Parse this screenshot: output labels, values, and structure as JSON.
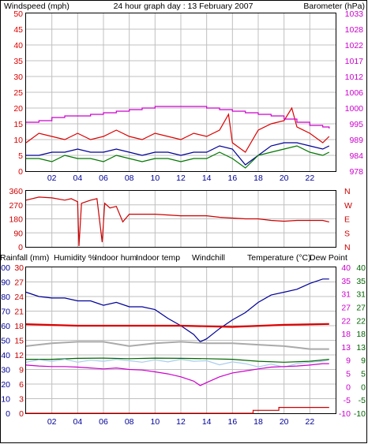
{
  "colors": {
    "windspeed": "#dd0000",
    "barometer": "#cc00cc",
    "windavg": "#000099",
    "gust": "#007700",
    "direction": "#cc0000",
    "rainfall": "#cc0000",
    "humidity": "#000099",
    "indoor_hum": "#aaaaaa",
    "indoor_temp": "#dd0000",
    "windchill": "#aaccee",
    "temperature": "#006600",
    "dew_point": "#cc00cc",
    "frame": "#000000",
    "grid": "#c0c0c0"
  },
  "chart_data": [
    {
      "type": "line",
      "title": "24 hour graph day : 13 February 2007",
      "xticks": [
        "02",
        "04",
        "06",
        "08",
        "10",
        "12",
        "14",
        "16",
        "18",
        "20",
        "22"
      ],
      "xrange": [
        0,
        24
      ],
      "ylabel_left": "Windspeed (mph)",
      "ylabel_right": "Barometer (hPa)",
      "ylim_left": [
        0,
        50
      ],
      "yticks_left": [
        "0",
        "5",
        "10",
        "15",
        "20",
        "25",
        "30",
        "35",
        "40",
        "45",
        "50"
      ],
      "yticks_right": [
        "978",
        "984",
        "989",
        "995",
        "1000",
        "1006",
        "1012",
        "1017",
        "1022",
        "1028",
        "1033"
      ],
      "series": [
        {
          "key": "windspeed",
          "axis": "left",
          "x": [
            0,
            1,
            2,
            3,
            4,
            5,
            6,
            7,
            8,
            9,
            10,
            11,
            12,
            13,
            14,
            15,
            15.7,
            16,
            17,
            18,
            19,
            20,
            20.6,
            21,
            22,
            23,
            23.5
          ],
          "y": [
            9,
            12,
            11,
            10,
            12,
            10,
            11,
            13,
            11,
            10,
            12,
            11,
            10,
            12,
            11,
            13,
            18,
            9,
            6,
            13,
            15,
            16,
            20,
            14,
            12,
            9,
            11
          ]
        },
        {
          "key": "windavg",
          "axis": "left",
          "x": [
            0,
            1,
            2,
            3,
            4,
            5,
            6,
            7,
            8,
            9,
            10,
            11,
            12,
            13,
            14,
            15,
            16,
            17,
            18,
            19,
            20,
            21,
            22,
            23,
            23.5
          ],
          "y": [
            5,
            5,
            6,
            6,
            7,
            6,
            6,
            7,
            6,
            5,
            6,
            6,
            5,
            6,
            6,
            8,
            7,
            2,
            5,
            8,
            9,
            9,
            8,
            7,
            8
          ]
        },
        {
          "key": "gust",
          "axis": "left",
          "x": [
            0,
            1,
            2,
            3,
            4,
            5,
            6,
            7,
            8,
            9,
            10,
            11,
            12,
            13,
            14,
            15,
            16,
            17,
            18,
            19,
            20,
            21,
            22,
            23,
            23.5
          ],
          "y": [
            4,
            4,
            3,
            5,
            4,
            4,
            3,
            5,
            4,
            3,
            4,
            4,
            3,
            4,
            4,
            6,
            4,
            1,
            5,
            6,
            7,
            8,
            6,
            5,
            6
          ]
        },
        {
          "key": "barometer",
          "axis": "left",
          "x": [
            0,
            1,
            2,
            3,
            4,
            5,
            6,
            7,
            8,
            9,
            10,
            11,
            12,
            13,
            14,
            15,
            16,
            17,
            18,
            19,
            20,
            21,
            22,
            23,
            23.5
          ],
          "y": [
            15.5,
            16,
            17,
            17.5,
            17.5,
            18,
            18.5,
            19,
            19.5,
            20,
            20.5,
            20.5,
            20.5,
            20.5,
            20,
            19.5,
            19,
            18.5,
            18,
            17.5,
            16.5,
            15.5,
            14.5,
            14,
            13.5
          ]
        }
      ]
    },
    {
      "type": "line",
      "ylabel_left": "",
      "ylim_left": [
        0,
        360
      ],
      "yticks_left": [
        "0",
        "90",
        "180",
        "270",
        "360"
      ],
      "yticks_right": [
        "N",
        "S",
        "E",
        "W",
        "N"
      ],
      "xrange": [
        0,
        24
      ],
      "series": [
        {
          "key": "direction",
          "axis": "left",
          "x": [
            0,
            1,
            2,
            3,
            3.5,
            4,
            4.1,
            4.3,
            5,
            5.5,
            5.9,
            6.1,
            6.5,
            7,
            7.5,
            8,
            9,
            10,
            11,
            12,
            13,
            14,
            15,
            16,
            17,
            18,
            19,
            20,
            21,
            22,
            23,
            23.5
          ],
          "y": [
            300,
            320,
            315,
            300,
            310,
            290,
            5,
            280,
            300,
            310,
            30,
            280,
            250,
            260,
            160,
            210,
            210,
            210,
            205,
            200,
            200,
            200,
            190,
            185,
            180,
            180,
            170,
            165,
            170,
            170,
            170,
            160
          ]
        }
      ]
    },
    {
      "type": "line",
      "xticks": [
        "02",
        "04",
        "06",
        "08",
        "10",
        "12",
        "14",
        "16",
        "18",
        "20",
        "22"
      ],
      "xrange": [
        0,
        24
      ],
      "legend": {
        "rainfall": "Rainfall (mm)",
        "humidity": "Humidity %",
        "indoor_hum": "Indoor hum",
        "indoor_temp": "Indoor temp",
        "windchill": "Windchill",
        "temperature": "Temperature (°C)",
        "dew_point": "Dew Point"
      },
      "ylim_left": [
        0,
        100
      ],
      "ylim_right": [
        -10,
        40
      ],
      "yticks_left_rain": [
        "0",
        "3",
        "6",
        "9",
        "12",
        "15",
        "18",
        "21",
        "24",
        "27",
        "30"
      ],
      "yticks_left_hum": [
        "0",
        "10",
        "20",
        "30",
        "40",
        "50",
        "60",
        "70",
        "80",
        "90",
        "100"
      ],
      "yticks_right": [
        "-10",
        "-5",
        "0",
        "5",
        "9",
        "13",
        "18",
        "22",
        "27",
        "31",
        "35",
        "40"
      ],
      "series": [
        {
          "key": "humidity",
          "axis": "left",
          "x": [
            0,
            1,
            2,
            3,
            4,
            5,
            6,
            7,
            8,
            9,
            10,
            11,
            12,
            13,
            13.5,
            14,
            15,
            16,
            17,
            18,
            19,
            20,
            21,
            22,
            23,
            23.5
          ],
          "y": [
            83,
            80,
            79,
            79,
            77,
            77,
            74,
            76,
            73,
            73,
            71,
            65,
            60,
            54,
            49,
            51,
            58,
            64,
            69,
            76,
            81,
            83,
            85,
            89,
            92,
            92
          ]
        },
        {
          "key": "indoor_hum",
          "axis": "left",
          "x": [
            0,
            2,
            4,
            6,
            8,
            10,
            12,
            14,
            16,
            18,
            20,
            22,
            23.5
          ],
          "y": [
            46,
            48,
            49,
            49,
            46,
            48,
            49,
            48,
            48,
            47,
            46,
            44,
            44
          ]
        },
        {
          "key": "indoor_temp",
          "axis": "right",
          "x": [
            0,
            4,
            8,
            12,
            16,
            20,
            23.5
          ],
          "y": [
            20.5,
            20,
            20,
            20,
            19.6,
            20.3,
            20.6
          ]
        },
        {
          "key": "temperature",
          "axis": "right",
          "x": [
            0,
            2,
            4,
            6,
            8,
            10,
            12,
            14,
            16,
            18,
            20,
            22,
            23.5
          ],
          "y": [
            8.5,
            8.5,
            8.8,
            8.9,
            8.7,
            8.9,
            8.8,
            8.7,
            8.5,
            7.8,
            7.5,
            7.8,
            8.5
          ]
        },
        {
          "key": "windchill",
          "axis": "right",
          "x": [
            0,
            1,
            2,
            3,
            4,
            5,
            6,
            7,
            8,
            9,
            10,
            11,
            12,
            13,
            14,
            15,
            16,
            17,
            18,
            19,
            20,
            21,
            22,
            23,
            23.5
          ],
          "y": [
            7.5,
            8.3,
            7.8,
            8.5,
            7.5,
            8.2,
            7.8,
            8.5,
            8.0,
            7.5,
            8.3,
            7.6,
            8.5,
            7.8,
            8.0,
            6.6,
            7.6,
            7.0,
            5.9,
            6.8,
            5.8,
            7.0,
            7.5,
            7.8,
            8.2
          ]
        },
        {
          "key": "dew_point",
          "axis": "right",
          "x": [
            0,
            1,
            2,
            3,
            4,
            5,
            6,
            7,
            8,
            9,
            10,
            11,
            12,
            13,
            13.5,
            14,
            15,
            16,
            17,
            18,
            19,
            20,
            21,
            22,
            23,
            23.5
          ],
          "y": [
            6.5,
            6.2,
            6.0,
            6.0,
            5.8,
            5.5,
            5.2,
            5.5,
            5.0,
            4.8,
            4.2,
            3.5,
            2.5,
            1.0,
            -0.5,
            0.5,
            2.5,
            3.8,
            4.5,
            5.2,
            5.8,
            6.0,
            6.2,
            6.5,
            7.0,
            7.0
          ]
        },
        {
          "key": "rainfall",
          "axis": "left",
          "x": [
            0,
            17.6,
            17.6,
            19.6,
            19.6,
            23.5
          ],
          "y": [
            0,
            0,
            2,
            2,
            4,
            4
          ]
        }
      ]
    }
  ]
}
